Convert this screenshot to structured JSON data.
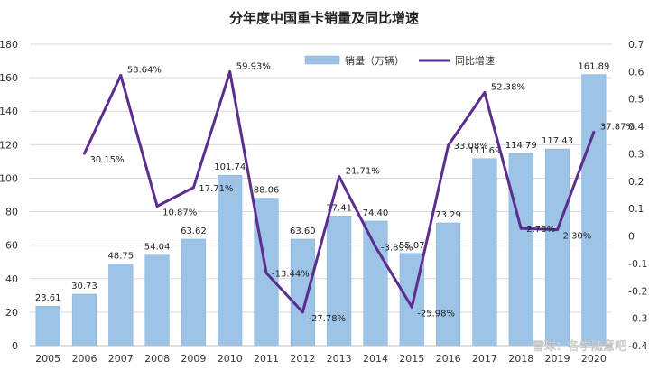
{
  "chart_data": {
    "type": "bar",
    "title": "分年度中国重卡销量及同比增速",
    "categories": [
      "2005",
      "2006",
      "2007",
      "2008",
      "2009",
      "2010",
      "2011",
      "2012",
      "2013",
      "2014",
      "2015",
      "2016",
      "2017",
      "2018",
      "2019",
      "2020"
    ],
    "series": [
      {
        "name": "销量（万辆）",
        "type": "bar",
        "axis": "left",
        "values": [
          23.61,
          30.73,
          48.75,
          54.04,
          63.62,
          101.74,
          88.06,
          63.6,
          77.41,
          74.4,
          55.07,
          73.29,
          111.69,
          114.79,
          117.43,
          161.89
        ],
        "labels": [
          "23.61",
          "30.73",
          "48.75",
          "54.04",
          "63.62",
          "101.74",
          "88.06",
          "63.60",
          "77.41",
          "74.40",
          "55.07",
          "73.29",
          "111.69",
          "114.79",
          "117.43",
          "161.89"
        ]
      },
      {
        "name": "同比增速",
        "type": "line",
        "axis": "right",
        "values": [
          null,
          0.3015,
          0.5864,
          0.1087,
          0.1771,
          0.5993,
          -0.1344,
          -0.2778,
          0.2171,
          -0.0389,
          -0.2598,
          0.3308,
          0.5238,
          0.0278,
          0.023,
          0.3787
        ],
        "labels": [
          "",
          "30.15%",
          "58.64%",
          "10.87%",
          "17.71%",
          "59.93%",
          "-13.44%",
          "-27.78%",
          "21.71%",
          "-3.89%",
          "-25.98%",
          "33.08%",
          "52.38%",
          "2.78%",
          "2.30%",
          "37.87%"
        ]
      }
    ],
    "y_left": {
      "min": 0,
      "max": 180,
      "step": 20,
      "ticks": [
        "0",
        "20",
        "40",
        "60",
        "80",
        "100",
        "120",
        "140",
        "160",
        "180"
      ]
    },
    "y_right": {
      "min": -0.4,
      "max": 0.7,
      "step": 0.1,
      "ticks": [
        "-0.4",
        "-0.3",
        "-0.2",
        "-0.1",
        "0",
        "0.1",
        "0.2",
        "0.3",
        "0.4",
        "0.5",
        "0.6",
        "0.7"
      ]
    },
    "grid": true,
    "legend": "top-right",
    "colors": {
      "bar": "#9dc3e6",
      "bar_edge": "#7fadd8",
      "line": "#5b2d8e",
      "grid": "#d9d9d9"
    }
  },
  "watermark": "雪球：各学随意吧"
}
